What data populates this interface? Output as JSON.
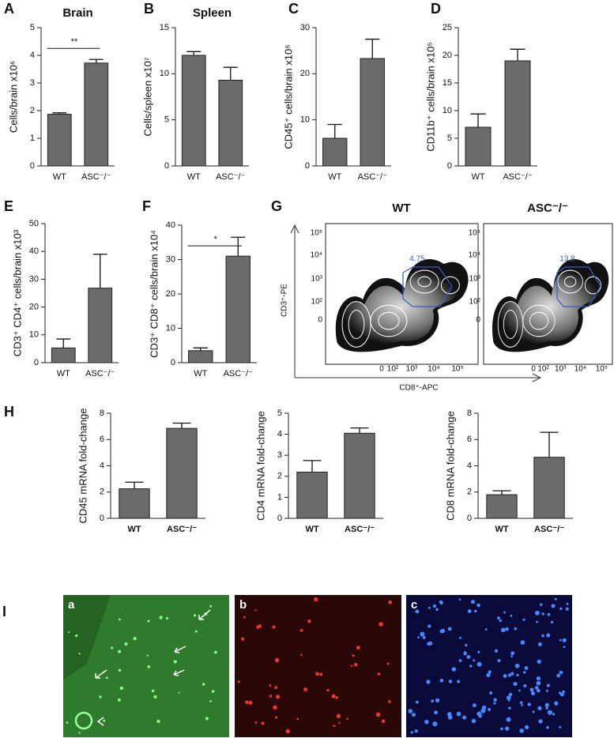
{
  "chart_data": [
    {
      "type": "bar",
      "panel": "A",
      "title": "Brain",
      "ylabel": "Cells/brain x10⁶",
      "categories": [
        "WT",
        "ASC⁻/⁻"
      ],
      "values": [
        1.87,
        3.72
      ],
      "errors": [
        0.05,
        0.13
      ],
      "color": "#6b6b6b",
      "ylim": [
        0,
        5
      ],
      "yticks": [
        0,
        1,
        2,
        3,
        4,
        5
      ],
      "significance": "**"
    },
    {
      "type": "bar",
      "panel": "B",
      "title": "Spleen",
      "ylabel": "Cells/spleen x10⁷",
      "categories": [
        "WT",
        "ASC⁻/⁻"
      ],
      "values": [
        12.0,
        9.3
      ],
      "errors": [
        0.4,
        1.4
      ],
      "color": "#6b6b6b",
      "ylim": [
        0,
        15
      ],
      "yticks": [
        0,
        5,
        10,
        15
      ]
    },
    {
      "type": "bar",
      "panel": "C",
      "ylabel": "CD45⁺ cells/brain x10⁵",
      "categories": [
        "WT",
        "ASC⁻/⁻"
      ],
      "values": [
        6,
        23.3
      ],
      "errors": [
        3,
        4.2
      ],
      "color": "#6b6b6b",
      "ylim": [
        0,
        30
      ],
      "yticks": [
        0,
        10,
        20,
        30
      ]
    },
    {
      "type": "bar",
      "panel": "D",
      "ylabel": "CD11b⁺ cells/brain x10⁵",
      "categories": [
        "WT",
        "ASC⁻/⁻"
      ],
      "values": [
        7,
        19
      ],
      "errors": [
        2.4,
        2.1
      ],
      "color": "#6b6b6b",
      "ylim": [
        0,
        25
      ],
      "yticks": [
        0,
        5,
        10,
        15,
        20,
        25
      ]
    },
    {
      "type": "bar",
      "panel": "E",
      "ylabel": "CD3⁺ CD4⁺ cells/brain x10³",
      "categories": [
        "WT",
        "ASC⁻/⁻"
      ],
      "values": [
        5.3,
        26.8
      ],
      "errors": [
        3.2,
        12.2
      ],
      "color": "#6b6b6b",
      "ylim": [
        0,
        50
      ],
      "yticks": [
        0,
        10,
        20,
        30,
        40,
        50
      ]
    },
    {
      "type": "bar",
      "panel": "F",
      "ylabel": "CD3⁺ CD8⁺ cells/brain x10⁴",
      "categories": [
        "WT",
        "ASC⁻/⁻"
      ],
      "values": [
        3.5,
        31
      ],
      "errors": [
        0.8,
        5.5
      ],
      "color": "#6b6b6b",
      "ylim": [
        0,
        40
      ],
      "yticks": [
        0,
        10,
        20,
        30,
        40
      ],
      "significance": "*"
    },
    {
      "type": "bar",
      "panel": "H",
      "ylabel": "CD45 mRNA fold-change",
      "categories": [
        "WT",
        "ASC⁻/⁻"
      ],
      "values": [
        2.25,
        6.85
      ],
      "errors": [
        0.5,
        0.4
      ],
      "color": "#6b6b6b",
      "ylim": [
        0,
        8
      ],
      "yticks": [
        0,
        2,
        4,
        6,
        8
      ],
      "bold_categories": true
    },
    {
      "type": "bar",
      "ylabel": "CD4 mRNA fold-change",
      "categories": [
        "WT",
        "ASC⁻/⁻"
      ],
      "values": [
        2.2,
        4.05
      ],
      "errors": [
        0.55,
        0.25
      ],
      "color": "#6b6b6b",
      "ylim": [
        0,
        5
      ],
      "yticks": [
        0,
        1,
        2,
        3,
        4,
        5
      ],
      "bold_categories": true
    },
    {
      "type": "bar",
      "ylabel": "CD8 mRNA fold-change",
      "categories": [
        "WT",
        "ASC⁻/⁻"
      ],
      "values": [
        1.8,
        4.65
      ],
      "errors": [
        0.3,
        1.9
      ],
      "color": "#6b6b6b",
      "ylim": [
        0,
        8
      ],
      "yticks": [
        0,
        2,
        4,
        6,
        8
      ],
      "bold_categories": true
    }
  ],
  "flow": {
    "panel": "G",
    "titles": [
      "WT",
      "ASC⁻/⁻"
    ],
    "gates": [
      "4.75",
      "13.8"
    ],
    "ylabel": "CD3⁺-PE",
    "xlabel": "CD8⁺-APC",
    "yticks": [
      "10⁵",
      "10⁴",
      "10³",
      "10²",
      "0"
    ],
    "xticks": [
      "0",
      "10²",
      "10³",
      "10⁴",
      "10⁵"
    ]
  },
  "micrographs": {
    "panel": "I",
    "labels": [
      "a",
      "b",
      "c"
    ]
  }
}
